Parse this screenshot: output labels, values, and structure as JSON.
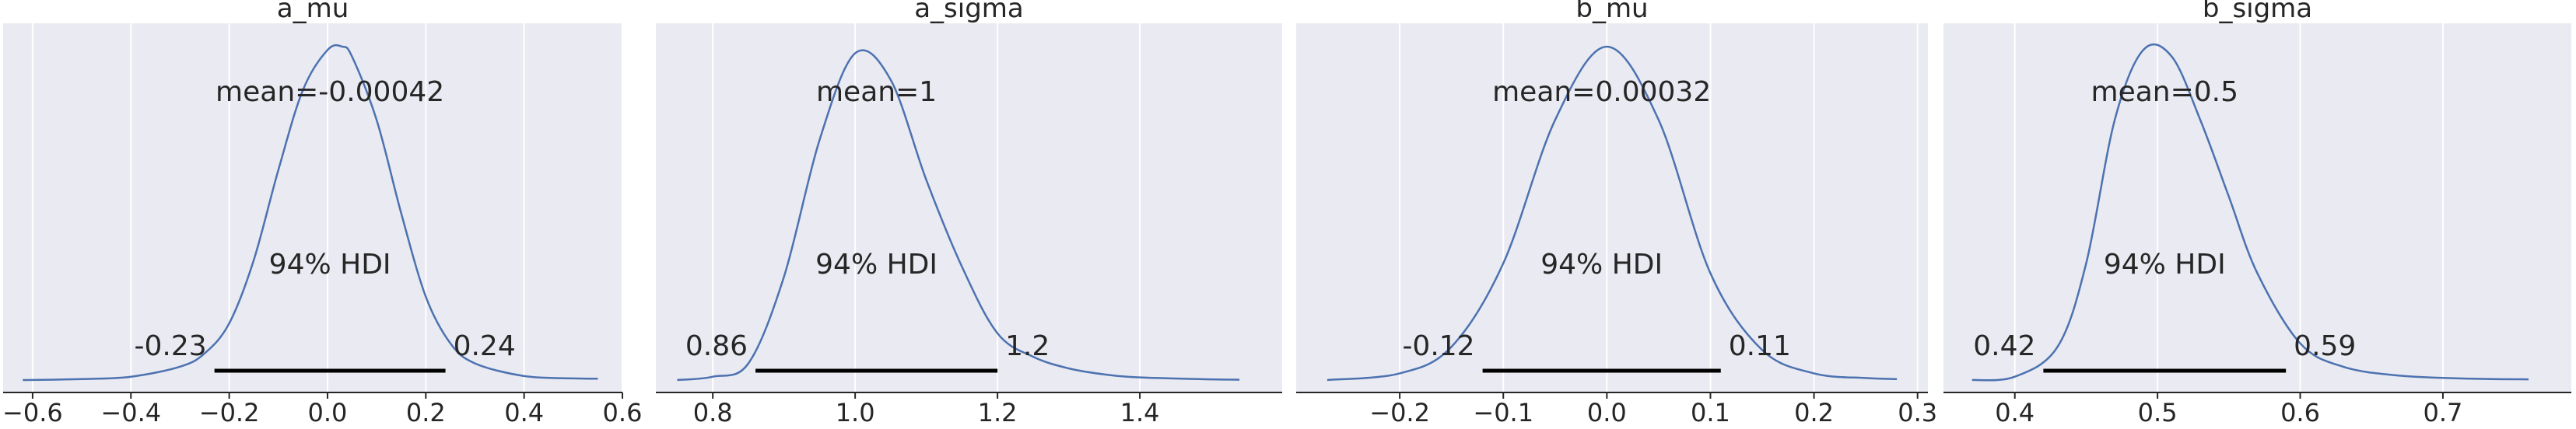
{
  "chart_data": [
    {
      "type": "line",
      "title": "a_mu",
      "xlabel": "",
      "ylabel": "",
      "xlim": [
        -0.66,
        0.6
      ],
      "xticks": [
        -0.6,
        -0.4,
        -0.2,
        0.0,
        0.2,
        0.4,
        0.6
      ],
      "x_tick_labels": [
        "−0.6",
        "−0.4",
        "−0.2",
        "0.0",
        "0.2",
        "0.4",
        "0.6"
      ],
      "grid": "vertical",
      "x": [
        -0.62,
        -0.5,
        -0.4,
        -0.3,
        -0.25,
        -0.2,
        -0.15,
        -0.1,
        -0.05,
        0.0,
        0.03,
        0.05,
        0.1,
        0.15,
        0.2,
        0.25,
        0.3,
        0.4,
        0.5,
        0.55
      ],
      "y": [
        0.0,
        0.003,
        0.01,
        0.04,
        0.08,
        0.17,
        0.36,
        0.63,
        0.87,
        0.99,
        1.0,
        0.97,
        0.78,
        0.5,
        0.25,
        0.11,
        0.05,
        0.012,
        0.005,
        0.004
      ],
      "mean_label": "mean=-0.00042",
      "hdi_label": "94% HDI",
      "hdi": [
        -0.23,
        0.24
      ],
      "hdi_lower_label": "-0.23",
      "hdi_upper_label": "0.24"
    },
    {
      "type": "line",
      "title": "a_sigma",
      "xlabel": "",
      "ylabel": "",
      "xlim": [
        0.72,
        1.6
      ],
      "xticks": [
        0.8,
        1.0,
        1.2,
        1.4
      ],
      "x_tick_labels": [
        "0.8",
        "1.0",
        "1.2",
        "1.4"
      ],
      "grid": "vertical",
      "x": [
        0.75,
        0.8,
        0.85,
        0.9,
        0.95,
        1.0,
        1.05,
        1.1,
        1.15,
        1.2,
        1.25,
        1.3,
        1.35,
        1.4,
        1.5,
        1.54
      ],
      "y": [
        0.0,
        0.01,
        0.05,
        0.31,
        0.72,
        0.98,
        0.9,
        0.6,
        0.34,
        0.14,
        0.07,
        0.035,
        0.017,
        0.008,
        0.002,
        0.001
      ],
      "mean_label": "mean=1",
      "hdi_label": "94% HDI",
      "hdi": [
        0.86,
        1.2
      ],
      "hdi_lower_label": "0.86",
      "hdi_upper_label": "1.2"
    },
    {
      "type": "line",
      "title": "b_mu",
      "xlabel": "",
      "ylabel": "",
      "xlim": [
        -0.3,
        0.31
      ],
      "xticks": [
        -0.2,
        -0.1,
        0.0,
        0.1,
        0.2,
        0.3
      ],
      "x_tick_labels": [
        "−0.2",
        "−0.1",
        "0.0",
        "0.1",
        "0.2",
        "0.3"
      ],
      "grid": "vertical",
      "x": [
        -0.27,
        -0.2,
        -0.15,
        -0.1,
        -0.05,
        0.0,
        0.05,
        0.1,
        0.15,
        0.2,
        0.25,
        0.28
      ],
      "y": [
        0.0,
        0.02,
        0.1,
        0.35,
        0.78,
        1.0,
        0.78,
        0.32,
        0.09,
        0.02,
        0.006,
        0.003
      ],
      "mean_label": "mean=0.00032",
      "hdi_label": "94% HDI",
      "hdi": [
        -0.12,
        0.11
      ],
      "hdi_lower_label": "-0.12",
      "hdi_upper_label": "0.11"
    },
    {
      "type": "line",
      "title": "b_sigma",
      "xlabel": "",
      "ylabel": "",
      "xlim": [
        0.35,
        0.79
      ],
      "xticks": [
        0.4,
        0.5,
        0.6,
        0.7
      ],
      "x_tick_labels": [
        "0.4",
        "0.5",
        "0.6",
        "0.7"
      ],
      "grid": "vertical",
      "x": [
        0.37,
        0.4,
        0.43,
        0.45,
        0.47,
        0.49,
        0.51,
        0.53,
        0.55,
        0.57,
        0.6,
        0.63,
        0.67,
        0.72,
        0.76
      ],
      "y": [
        0.0,
        0.01,
        0.1,
        0.35,
        0.78,
        0.99,
        0.97,
        0.78,
        0.55,
        0.32,
        0.11,
        0.04,
        0.013,
        0.004,
        0.002
      ],
      "mean_label": "mean=0.5",
      "hdi_label": "94% HDI",
      "hdi": [
        0.42,
        0.59
      ],
      "hdi_lower_label": "0.42",
      "hdi_upper_label": "0.59"
    }
  ],
  "colors": {
    "axes_background": "#EAEAF2",
    "grid": "#FFFFFF",
    "density_line": "#4C72B0",
    "hdi_line": "#000000",
    "spine": "#262626",
    "text": "#262626"
  }
}
